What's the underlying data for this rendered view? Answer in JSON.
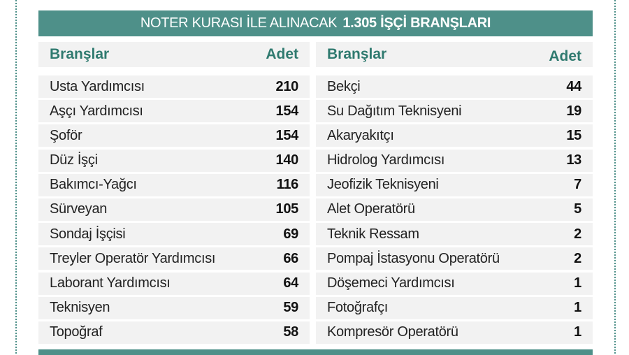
{
  "title": {
    "prefix": "NOTER KURASI İLE ALINACAK",
    "bold": "1.305 İŞÇİ BRANŞLARI"
  },
  "colors": {
    "accent": "#4e9089",
    "header_text": "#2f7a6f",
    "row_bg": "#f2f2f2"
  },
  "left": {
    "header": {
      "branch": "Branşlar",
      "count": "Adet"
    },
    "rows": [
      {
        "name": "Usta Yardımcısı",
        "count": "210"
      },
      {
        "name": "Aşçı Yardımcısı",
        "count": "154"
      },
      {
        "name": "Şoför",
        "count": "154"
      },
      {
        "name": "Düz İşçi",
        "count": "140"
      },
      {
        "name": "Bakımcı-Yağcı",
        "count": "116"
      },
      {
        "name": "Sürveyan",
        "count": "105"
      },
      {
        "name": "Sondaj İşçisi",
        "count": "69"
      },
      {
        "name": "Treyler Operatör Yardımcısı",
        "count": "66"
      },
      {
        "name": "Laborant Yardımcısı",
        "count": "64"
      },
      {
        "name": "Teknisyen",
        "count": "59"
      },
      {
        "name": "Topoğraf",
        "count": "58"
      }
    ]
  },
  "right": {
    "header": {
      "branch": "Branşlar",
      "count": "Adet"
    },
    "rows": [
      {
        "name": "Bekçi",
        "count": "44"
      },
      {
        "name": "Su Dağıtım Teknisyeni",
        "count": "19"
      },
      {
        "name": "Akaryakıtçı",
        "count": "15"
      },
      {
        "name": "Hidrolog Yardımcısı",
        "count": "13"
      },
      {
        "name": "Jeofizik Teknisyeni",
        "count": "7"
      },
      {
        "name": "Alet Operatörü",
        "count": "5"
      },
      {
        "name": "Teknik Ressam",
        "count": "2"
      },
      {
        "name": "Pompaj İstasyonu Operatörü",
        "count": "2"
      },
      {
        "name": "Döşemeci Yardımcısı",
        "count": "1"
      },
      {
        "name": "Fotoğrafçı",
        "count": "1"
      },
      {
        "name": "Kompresör Operatörü",
        "count": "1"
      }
    ]
  }
}
